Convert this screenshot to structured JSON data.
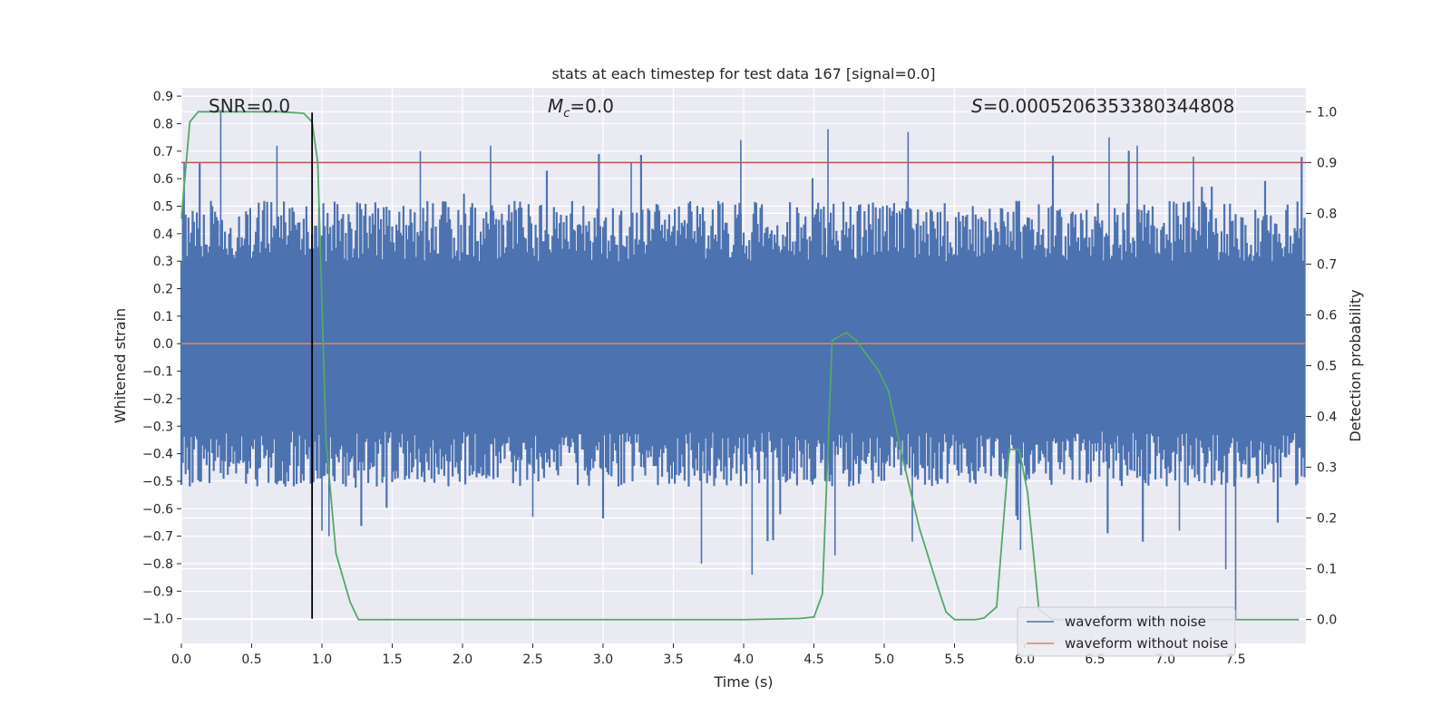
{
  "chart_data": {
    "type": "line",
    "title": "stats at each timestep for test data 167 [signal=0.0]",
    "xlabel": "Time (s)",
    "ylabel": "Whitened strain",
    "y2label": "Detection probability",
    "xlim": [
      0.0,
      8.0
    ],
    "ylim": [
      -1.09,
      0.93
    ],
    "y2lim": [
      -0.047,
      1.047
    ],
    "xticks": [
      0.0,
      0.5,
      1.0,
      1.5,
      2.0,
      2.5,
      3.0,
      3.5,
      4.0,
      4.5,
      5.0,
      5.5,
      6.0,
      6.5,
      7.0,
      7.5
    ],
    "xtick_labels": [
      "0.0",
      "0.5",
      "1.0",
      "1.5",
      "2.0",
      "2.5",
      "3.0",
      "3.5",
      "4.0",
      "4.5",
      "5.0",
      "5.5",
      "6.0",
      "6.5",
      "7.0",
      "7.5"
    ],
    "yticks": [
      0.9,
      0.8,
      0.7,
      0.6,
      0.5,
      0.4,
      0.3,
      0.2,
      0.1,
      0.0,
      -0.1,
      -0.2,
      -0.3,
      -0.4,
      -0.5,
      -0.6,
      -0.7,
      -0.8,
      -0.9,
      -1.0
    ],
    "ytick_labels": [
      "0.9",
      "0.8",
      "0.7",
      "0.6",
      "0.5",
      "0.4",
      "0.3",
      "0.2",
      "0.1",
      "0.0",
      "−0.1",
      "−0.2",
      "−0.3",
      "−0.4",
      "−0.5",
      "−0.6",
      "−0.7",
      "−0.8",
      "−0.9",
      "−1.0"
    ],
    "y2ticks": [
      1.0,
      0.9,
      0.8,
      0.7,
      0.6,
      0.5,
      0.4,
      0.3,
      0.2,
      0.1,
      0.0
    ],
    "y2tick_labels": [
      "1.0",
      "0.9",
      "0.8",
      "0.7",
      "0.6",
      "0.5",
      "0.4",
      "0.3",
      "0.2",
      "0.1",
      "0.0"
    ],
    "annotations": {
      "snr": "SNR=0.0",
      "mc_symbol": "M",
      "mc_sub": "c",
      "mc_value": "=0.0",
      "s_symbol": "S",
      "s_value": "=0.0005206353380344808"
    },
    "legend": {
      "placement": "lower right",
      "entries": [
        "waveform with noise",
        "waveform without noise"
      ]
    },
    "series": [
      {
        "name": "waveform with noise",
        "axis": "left",
        "color": "#4c72b0",
        "kind": "noise",
        "sample_count": 800,
        "typical_upper": 0.3,
        "typical_lower": -0.32,
        "spikes": [
          {
            "t": 0.02,
            "v": 0.66
          },
          {
            "t": 0.28,
            "v": 0.85
          },
          {
            "t": 0.68,
            "v": 0.72
          },
          {
            "t": 0.93,
            "v": -0.7
          },
          {
            "t": 1.0,
            "v": -0.68
          },
          {
            "t": 1.7,
            "v": 0.7
          },
          {
            "t": 2.2,
            "v": 0.72
          },
          {
            "t": 2.5,
            "v": -0.63
          },
          {
            "t": 3.2,
            "v": 0.66
          },
          {
            "t": 3.7,
            "v": -0.8
          },
          {
            "t": 3.98,
            "v": 0.74
          },
          {
            "t": 4.06,
            "v": -0.84
          },
          {
            "t": 4.6,
            "v": 0.78
          },
          {
            "t": 4.65,
            "v": -0.77
          },
          {
            "t": 5.17,
            "v": 0.77
          },
          {
            "t": 5.2,
            "v": -0.72
          },
          {
            "t": 5.97,
            "v": -0.75
          },
          {
            "t": 6.6,
            "v": 0.75
          },
          {
            "t": 6.8,
            "v": 0.72
          },
          {
            "t": 7.1,
            "v": -0.68
          },
          {
            "t": 7.43,
            "v": -0.82
          },
          {
            "t": 7.5,
            "v": -1.0
          },
          {
            "t": 7.2,
            "v": 0.68
          },
          {
            "t": 1.05,
            "v": -0.7
          }
        ]
      },
      {
        "name": "waveform without noise",
        "axis": "left",
        "color": "#dd8452",
        "x": [
          0.0,
          8.0
        ],
        "y": [
          0.0,
          0.0
        ]
      },
      {
        "name": "detection probability",
        "axis": "right",
        "color": "#55a868",
        "x": [
          0.0,
          0.06,
          0.12,
          0.2,
          0.4,
          0.7,
          0.87,
          0.93,
          0.97,
          1.03,
          1.1,
          1.2,
          1.26,
          1.5,
          2.0,
          3.0,
          4.0,
          4.2,
          4.4,
          4.5,
          4.56,
          4.63,
          4.73,
          4.8,
          4.88,
          4.96,
          5.03,
          5.13,
          5.25,
          5.38,
          5.44,
          5.5,
          5.57,
          5.65,
          5.71,
          5.8,
          5.89,
          5.96,
          6.02,
          6.1,
          6.2,
          6.5,
          7.0,
          7.5,
          7.95
        ],
        "y": [
          0.79,
          0.98,
          1.0,
          1.0,
          1.0,
          1.0,
          0.997,
          0.98,
          0.9,
          0.35,
          0.13,
          0.035,
          0.0,
          0.0,
          0.0,
          0.0,
          0.0,
          0.001,
          0.002,
          0.005,
          0.05,
          0.55,
          0.565,
          0.55,
          0.52,
          0.49,
          0.45,
          0.32,
          0.18,
          0.065,
          0.015,
          0.0,
          0.0,
          0.0,
          0.003,
          0.025,
          0.335,
          0.335,
          0.25,
          0.02,
          0.0,
          0.0,
          0.0,
          0.0,
          0.0
        ]
      }
    ],
    "reference_lines": [
      {
        "name": "threshold",
        "axis": "right",
        "orientation": "horizontal",
        "value": 0.9,
        "color": "#c44e52"
      },
      {
        "name": "event time",
        "axis": "left",
        "orientation": "vertical",
        "t": 0.93,
        "from": -1.0,
        "to": 0.84,
        "color": "#000000"
      }
    ]
  }
}
